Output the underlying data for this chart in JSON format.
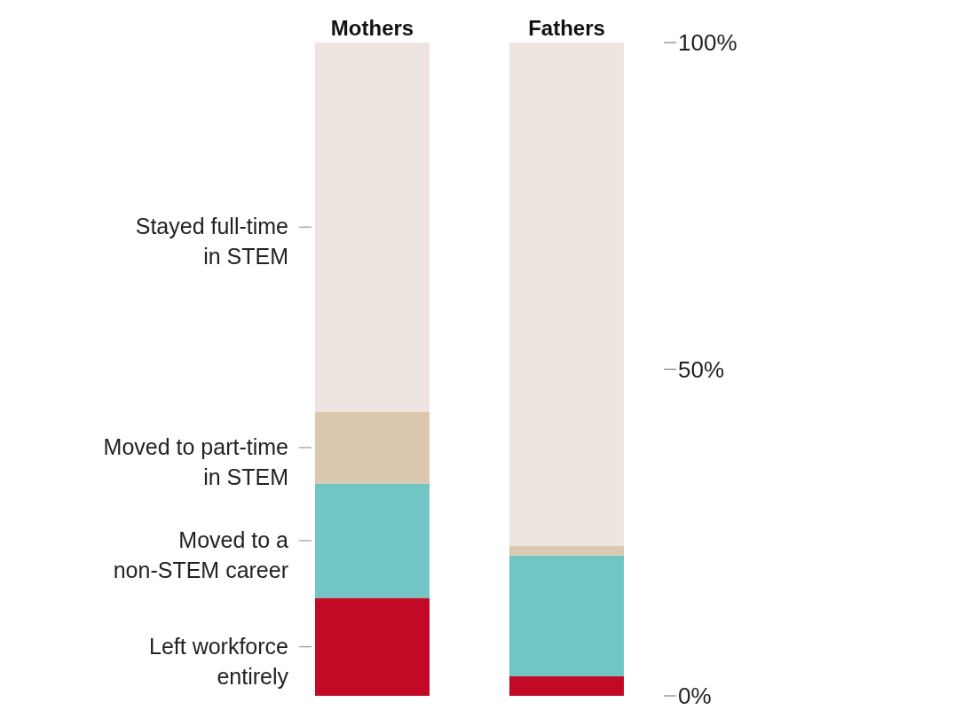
{
  "chart_data": {
    "type": "bar",
    "stacked": true,
    "categories": [
      "Mothers",
      "Fathers"
    ],
    "series": [
      {
        "name": "Left workforce entirely",
        "color": "#c20a27",
        "values": [
          15,
          3
        ]
      },
      {
        "name": "Moved to a non-STEM career",
        "color": "#72c5c5",
        "values": [
          17.5,
          18.5
        ]
      },
      {
        "name": "Moved to part-time in STEM",
        "color": "#dcc8b0",
        "values": [
          11,
          1.5
        ]
      },
      {
        "name": "Stayed full-time in STEM",
        "color": "#efe5e0",
        "values": [
          56.5,
          77
        ]
      }
    ],
    "ylim": [
      0,
      100
    ],
    "yticks": [
      {
        "value": 0,
        "label": "0%"
      },
      {
        "value": 50,
        "label": "50%"
      },
      {
        "value": 100,
        "label": "100%"
      }
    ],
    "grid": false,
    "legend": false
  }
}
